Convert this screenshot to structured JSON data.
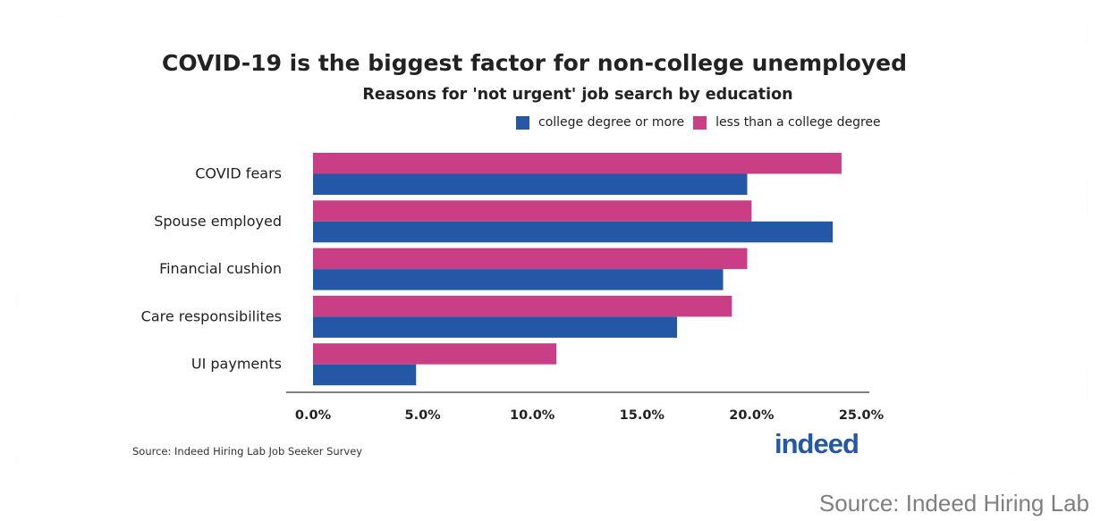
{
  "title": "COVID-19 is the biggest factor for non-college unemployed",
  "subtitle": "Reasons for 'not urgent' job search by education",
  "colors": {
    "college": "#2557a7",
    "non_college": "#c93e85"
  },
  "legend": {
    "college": "college degree or more",
    "non_college": "less than a college degree"
  },
  "source_small": "Source: Indeed Hiring Lab Job Seeker Survey",
  "logo_text": "indeed",
  "source_caption": "Source: Indeed Hiring Lab",
  "chart_data": {
    "type": "bar",
    "orientation": "horizontal",
    "categories": [
      "COVID fears",
      "Spouse employed",
      "Financial cushion",
      "Care responsibilites",
      "UI payments"
    ],
    "series": [
      {
        "name": "less than a college degree",
        "values": [
          24.1,
          20.0,
          19.8,
          19.1,
          11.1
        ]
      },
      {
        "name": "college degree or more",
        "values": [
          19.8,
          23.7,
          18.7,
          16.6,
          4.7
        ]
      }
    ],
    "xlim": [
      0,
      25
    ],
    "xticks": [
      "0.0%",
      "5.0%",
      "10.0%",
      "15.0%",
      "20.0%",
      "25.0%"
    ],
    "xlabel": "",
    "ylabel": "",
    "legend_position": "top-right",
    "grid": false
  }
}
